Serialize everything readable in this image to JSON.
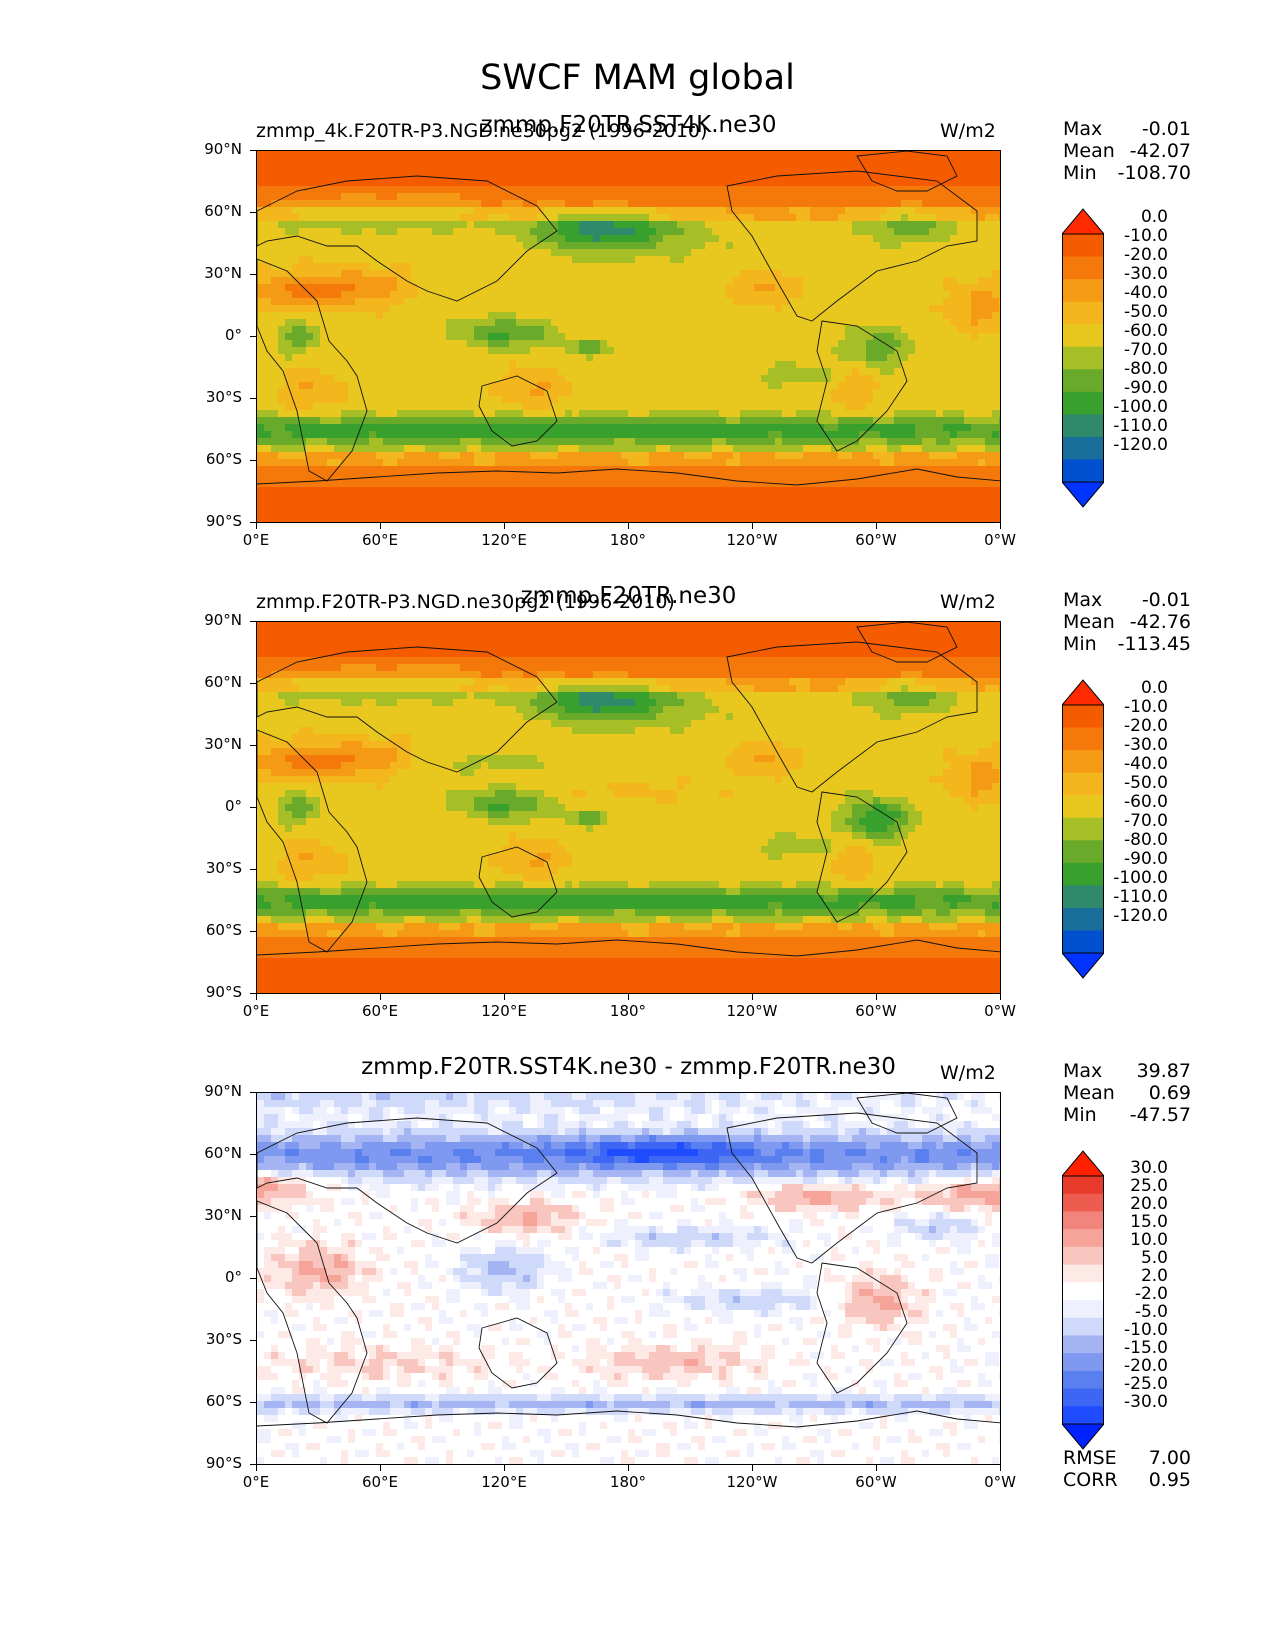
{
  "figure_title": "SWCF MAM global",
  "colors": {
    "cmap_abs": [
      "#0033ff",
      "#0050d0",
      "#1a6f9a",
      "#2e8a6a",
      "#38a02c",
      "#6aaa2a",
      "#a6bf26",
      "#e8c81f",
      "#f3b61c",
      "#f59a14",
      "#f5780a",
      "#f55c00",
      "#ff2a00"
    ],
    "cmap_diff": [
      "#0022ff",
      "#1f4cff",
      "#3d66f5",
      "#5a80f0",
      "#7f98f0",
      "#a5b5f3",
      "#cfd9f9",
      "#eef1fd",
      "#ffffff",
      "#fde9e6",
      "#f9c6bf",
      "#f6a49a",
      "#f2857b",
      "#ee5c50",
      "#e83a2a",
      "#ff2000"
    ]
  },
  "chart_data": [
    {
      "type": "heatmap",
      "title": "zmmp.F20TR.SST4K.ne30",
      "subtitle": "zmmp_4k.F20TR-P3.NGD.ne30pg2 (1996-2010)",
      "units": "W/m2",
      "stats": {
        "max_label": "Max",
        "max": "-0.01",
        "mean_label": "Mean",
        "mean": "-42.07",
        "min_label": "Min",
        "min": "-108.70"
      },
      "xticks": [
        "0°E",
        "60°E",
        "120°E",
        "180°",
        "120°W",
        "60°W",
        "0°W"
      ],
      "yticks": [
        "90°N",
        "60°N",
        "30°N",
        "0°",
        "30°S",
        "60°S",
        "90°S"
      ],
      "xlim": [
        0,
        360
      ],
      "ylim": [
        -90,
        90
      ],
      "colorbar_levels": [
        "0.0",
        "-10.0",
        "-20.0",
        "-30.0",
        "-40.0",
        "-50.0",
        "-60.0",
        "-70.0",
        "-80.0",
        "-90.0",
        "-100.0",
        "-110.0",
        "-120.0"
      ],
      "colormap": "abs",
      "variant": 0
    },
    {
      "type": "heatmap",
      "title": "zmmp.F20TR.ne30",
      "subtitle": "zmmp.F20TR-P3.NGD.ne30pg2 (1996-2010)",
      "units": "W/m2",
      "stats": {
        "max_label": "Max",
        "max": "-0.01",
        "mean_label": "Mean",
        "mean": "-42.76",
        "min_label": "Min",
        "min": "-113.45"
      },
      "xticks": [
        "0°E",
        "60°E",
        "120°E",
        "180°",
        "120°W",
        "60°W",
        "0°W"
      ],
      "yticks": [
        "90°N",
        "60°N",
        "30°N",
        "0°",
        "30°S",
        "60°S",
        "90°S"
      ],
      "xlim": [
        0,
        360
      ],
      "ylim": [
        -90,
        90
      ],
      "colorbar_levels": [
        "0.0",
        "-10.0",
        "-20.0",
        "-30.0",
        "-40.0",
        "-50.0",
        "-60.0",
        "-70.0",
        "-80.0",
        "-90.0",
        "-100.0",
        "-110.0",
        "-120.0"
      ],
      "colormap": "abs",
      "variant": 1
    },
    {
      "type": "heatmap",
      "title": "zmmp.F20TR.SST4K.ne30 - zmmp.F20TR.ne30",
      "subtitle": "",
      "units": "W/m2",
      "stats": {
        "max_label": "Max",
        "max": "39.87",
        "mean_label": "Mean",
        "mean": "0.69",
        "min_label": "Min",
        "min": "-47.57"
      },
      "rmse_label": "RMSE",
      "rmse": "7.00",
      "corr_label": "CORR",
      "corr": "0.95",
      "xticks": [
        "0°E",
        "60°E",
        "120°E",
        "180°",
        "120°W",
        "60°W",
        "0°W"
      ],
      "yticks": [
        "90°N",
        "60°N",
        "30°N",
        "0°",
        "30°S",
        "60°S",
        "90°S"
      ],
      "xlim": [
        0,
        360
      ],
      "ylim": [
        -90,
        90
      ],
      "colorbar_levels": [
        "30.0",
        "25.0",
        "20.0",
        "15.0",
        "10.0",
        "5.0",
        "2.0",
        "-2.0",
        "-5.0",
        "-10.0",
        "-15.0",
        "-20.0",
        "-25.0",
        "-30.0"
      ],
      "colormap": "diff",
      "variant": 2
    }
  ]
}
